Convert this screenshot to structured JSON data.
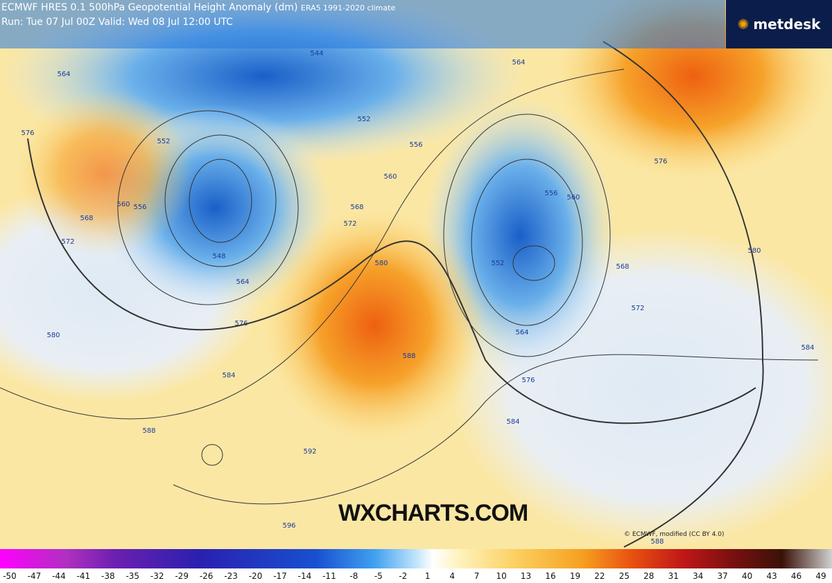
{
  "header": {
    "title": "ECMWF HRES 0.1 500hPa Geopotential Height Anomaly (dm)",
    "climate": "ERA5 1991-2020 climate",
    "run": "Run: Tue 07 Jul 00Z Valid: Wed 08 Jul 12:00 UTC"
  },
  "logo": "metdesk",
  "watermark": "WXCHARTS.COM",
  "credit": "© ECMWF, modified (CC BY 4.0)",
  "contour_labels": [
    544,
    564,
    564,
    576,
    552,
    552,
    556,
    560,
    568,
    572,
    580,
    560,
    556,
    568,
    572,
    548,
    564,
    576,
    580,
    584,
    588,
    556,
    560,
    552,
    568,
    572,
    576,
    580,
    584,
    564,
    576,
    584,
    588,
    592,
    596,
    588
  ],
  "colorbar": {
    "labels": [
      -50,
      -47,
      -44,
      -41,
      -38,
      -35,
      -32,
      -29,
      -26,
      -23,
      -20,
      -17,
      -14,
      -11,
      -8,
      -5,
      -2,
      1,
      4,
      7,
      10,
      13,
      16,
      19,
      22,
      25,
      28,
      31,
      34,
      37,
      40,
      43,
      46,
      49
    ]
  }
}
